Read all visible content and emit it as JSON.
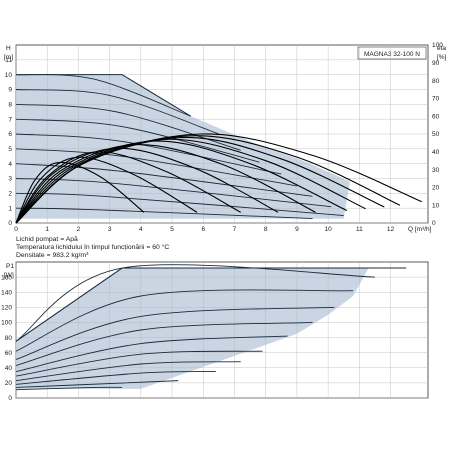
{
  "chart_data": [
    {
      "type": "line",
      "title": "MAGNA3 32-100 N",
      "xlabel": "Q [m³/h]",
      "ylabel_left_symbol": "H",
      "ylabel_left_unit": "[m]",
      "ylabel_right_symbol": "eta",
      "ylabel_right_unit": "[%]",
      "xlim": [
        0,
        13.2
      ],
      "ylim": [
        0,
        12
      ],
      "y2lim": [
        0,
        100
      ],
      "x_ticks": [
        "0",
        "1",
        "2",
        "3",
        "4",
        "5",
        "6",
        "7",
        "8",
        "9",
        "10",
        "11",
        "12"
      ],
      "y_ticks": [
        "0",
        "1",
        "2",
        "3",
        "4",
        "5",
        "6",
        "7",
        "8",
        "9",
        "10",
        "11"
      ],
      "y2_ticks": [
        "0",
        "10",
        "20",
        "30",
        "40",
        "50",
        "60",
        "70",
        "80",
        "90",
        "100"
      ],
      "grid": true,
      "notes": [
        "Lichid pompat = Apă",
        "Temperatura lichidului în timpul funcționării = 60 °C",
        "Densitate = 983.2 kg/m³"
      ],
      "operating_envelope": {
        "x": [
          0,
          3.4,
          5.6,
          7.5,
          9.2,
          10.7,
          10.5,
          0
        ],
        "y": [
          10,
          10,
          7.2,
          5.5,
          4.2,
          2.8,
          0.3,
          0.3
        ]
      },
      "series": [
        {
          "x": [
            0,
            2.5,
            5.6
          ],
          "y": [
            10,
            9.7,
            7.2
          ]
        },
        {
          "x": [
            0,
            3,
            6.5
          ],
          "y": [
            9,
            8.6,
            6.0
          ]
        },
        {
          "x": [
            0,
            3.2,
            7.2
          ],
          "y": [
            8,
            7.5,
            4.9
          ]
        },
        {
          "x": [
            0,
            3.4,
            7.8
          ],
          "y": [
            7,
            6.5,
            4.1
          ]
        },
        {
          "x": [
            0,
            3.4,
            8.5
          ],
          "y": [
            6,
            5.5,
            3.3
          ]
        },
        {
          "x": [
            0,
            3.4,
            9.0
          ],
          "y": [
            5,
            4.5,
            2.5
          ]
        },
        {
          "x": [
            0,
            3.3,
            9.5
          ],
          "y": [
            4,
            3.5,
            1.8
          ]
        },
        {
          "x": [
            0,
            3.0,
            10.1
          ],
          "y": [
            3,
            2.7,
            1.1
          ]
        },
        {
          "x": [
            0,
            2.8,
            10.5
          ],
          "y": [
            2,
            1.8,
            0.5
          ]
        },
        {
          "x": [
            0,
            2.5,
            9.5
          ],
          "y": [
            1,
            0.9,
            0.3
          ]
        }
      ],
      "efficiency_curves": [
        {
          "x": [
            0,
            2.2,
            5.9,
            9.5,
            13
          ],
          "eta": [
            0,
            34,
            50,
            38,
            12
          ]
        },
        {
          "x": [
            0,
            2.1,
            5.6,
            9.0,
            12.3
          ],
          "eta": [
            0,
            33,
            49,
            37,
            10
          ]
        },
        {
          "x": [
            0,
            2.0,
            5.3,
            8.5,
            11.8
          ],
          "eta": [
            0,
            32,
            48,
            36,
            9
          ]
        },
        {
          "x": [
            0,
            1.8,
            4.8,
            8.0,
            11.2
          ],
          "eta": [
            0,
            31,
            47,
            35,
            8
          ]
        },
        {
          "x": [
            0,
            1.6,
            4.4,
            7.4,
            10.6
          ],
          "eta": [
            0,
            30,
            46,
            34,
            7
          ]
        },
        {
          "x": [
            0,
            1.4,
            3.8,
            6.6,
            9.6
          ],
          "eta": [
            0,
            29,
            44,
            33,
            6
          ]
        },
        {
          "x": [
            0,
            1.2,
            3.2,
            5.7,
            8.4
          ],
          "eta": [
            0,
            28,
            42,
            31,
            6
          ]
        },
        {
          "x": [
            0,
            1.0,
            2.6,
            4.8,
            7.2
          ],
          "eta": [
            0,
            26,
            40,
            29,
            6
          ]
        },
        {
          "x": [
            0,
            0.8,
            2.0,
            3.8,
            5.8
          ],
          "eta": [
            0,
            25,
            37,
            27,
            6
          ]
        },
        {
          "x": [
            0,
            0.6,
            1.4,
            2.7,
            4.1
          ],
          "eta": [
            0,
            24,
            34,
            26,
            6
          ]
        }
      ]
    },
    {
      "type": "line",
      "ylabel_symbol": "P1",
      "ylabel_unit": "[W]",
      "xlim": [
        0,
        13.2
      ],
      "ylim": [
        0,
        180
      ],
      "y_ticks": [
        "0",
        "20",
        "40",
        "60",
        "80",
        "100",
        "120",
        "140",
        "160"
      ],
      "grid": true,
      "max_power_line": {
        "x": [
          0,
          3.4,
          12.5
        ],
        "y": [
          75,
          172,
          172
        ]
      },
      "operating_envelope": {
        "x": [
          0,
          3.4,
          11.3,
          10.8,
          10.0,
          9.0,
          4.0,
          0
        ],
        "y": [
          75,
          172,
          172,
          135,
          110,
          85,
          12,
          12
        ]
      },
      "series": [
        {
          "x": [
            0,
            3.4,
            11.5
          ],
          "y": [
            75,
            172,
            160
          ]
        },
        {
          "x": [
            0,
            4,
            10.8
          ],
          "y": [
            62,
            135,
            142
          ]
        },
        {
          "x": [
            0,
            4,
            10.2
          ],
          "y": [
            51,
            108,
            120
          ]
        },
        {
          "x": [
            0,
            4,
            9.5
          ],
          "y": [
            43,
            90,
            100
          ]
        },
        {
          "x": [
            0,
            4,
            8.7
          ],
          "y": [
            35,
            72,
            82
          ]
        },
        {
          "x": [
            0,
            4,
            7.9
          ],
          "y": [
            29,
            58,
            62
          ]
        },
        {
          "x": [
            0,
            4,
            7.2
          ],
          "y": [
            23,
            45,
            48
          ]
        },
        {
          "x": [
            0,
            4,
            6.4
          ],
          "y": [
            18,
            33,
            35
          ]
        },
        {
          "x": [
            0,
            3.5,
            5.2
          ],
          "y": [
            14,
            20,
            23
          ]
        },
        {
          "x": [
            0,
            2.5,
            3.4
          ],
          "y": [
            11,
            14,
            14
          ]
        }
      ]
    }
  ]
}
